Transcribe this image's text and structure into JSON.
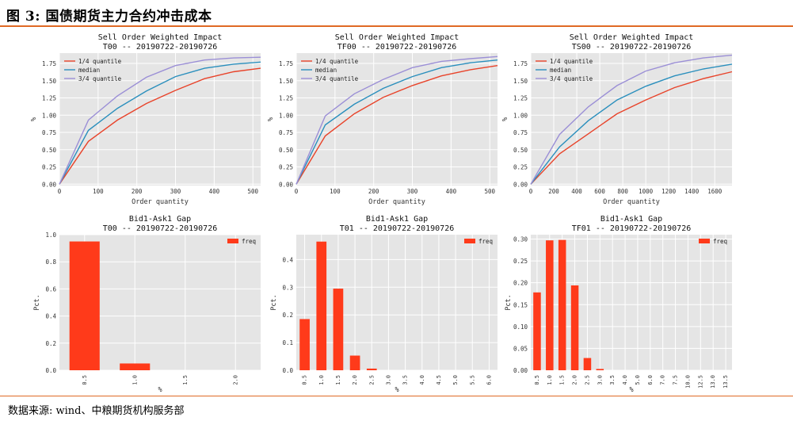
{
  "figure": {
    "title": "图 3: 国债期货主力合约冲击成本",
    "source": "数据来源: wind、中粮期货机构服务部"
  },
  "colors": {
    "q1": "#e8432a",
    "median": "#2a8fbd",
    "q3": "#9b8fd6",
    "bar": "#ff3a1a",
    "panel_bg": "#e5e5e5",
    "grid": "#ffffff",
    "accent_rule": "#e06a25"
  },
  "chart_data": [
    {
      "type": "line",
      "title": "Sell Order Weighted Impact",
      "subtitle": "T00 -- 20190722-20190726",
      "xlabel": "Order quantity",
      "ylabel": "%",
      "xlim": [
        0,
        520
      ],
      "ylim": [
        -0.02,
        1.9
      ],
      "xticks": [
        0,
        100,
        200,
        300,
        400,
        500
      ],
      "yticks": [
        0.0,
        0.25,
        0.5,
        0.75,
        1.0,
        1.25,
        1.5,
        1.75
      ],
      "ytick_labels": [
        "0.00",
        "0.25",
        "0.50",
        "0.75",
        "1.00",
        "1.25",
        "1.50",
        "1.75"
      ],
      "x": [
        0,
        75,
        150,
        225,
        300,
        375,
        450,
        525
      ],
      "series": [
        {
          "name": "1/4 quantile",
          "values": [
            0,
            0.62,
            0.93,
            1.17,
            1.36,
            1.53,
            1.63,
            1.68
          ]
        },
        {
          "name": "median",
          "values": [
            0,
            0.78,
            1.1,
            1.35,
            1.56,
            1.68,
            1.74,
            1.77
          ]
        },
        {
          "name": "3/4 quantile",
          "values": [
            0,
            0.93,
            1.28,
            1.55,
            1.72,
            1.8,
            1.83,
            1.84
          ]
        }
      ],
      "legend": "top-left",
      "grid": true
    },
    {
      "type": "line",
      "title": "Sell Order Weighted Impact",
      "subtitle": "TF00 -- 20190722-20190726",
      "xlabel": "Order quantity",
      "ylabel": "%",
      "xlim": [
        0,
        520
      ],
      "ylim": [
        -0.02,
        1.9
      ],
      "xticks": [
        0,
        100,
        200,
        300,
        400,
        500
      ],
      "yticks": [
        0.0,
        0.25,
        0.5,
        0.75,
        1.0,
        1.25,
        1.5,
        1.75
      ],
      "ytick_labels": [
        "0.00",
        "0.25",
        "0.50",
        "0.75",
        "1.00",
        "1.25",
        "1.50",
        "1.75"
      ],
      "x": [
        0,
        75,
        150,
        225,
        300,
        375,
        450,
        525
      ],
      "series": [
        {
          "name": "1/4 quantile",
          "values": [
            0,
            0.7,
            1.02,
            1.26,
            1.43,
            1.57,
            1.66,
            1.72
          ]
        },
        {
          "name": "median",
          "values": [
            0,
            0.86,
            1.16,
            1.39,
            1.56,
            1.69,
            1.76,
            1.8
          ]
        },
        {
          "name": "3/4 quantile",
          "values": [
            0,
            0.99,
            1.31,
            1.52,
            1.69,
            1.78,
            1.82,
            1.85
          ]
        }
      ],
      "legend": "top-left",
      "grid": true
    },
    {
      "type": "line",
      "title": "Sell Order Weighted Impact",
      "subtitle": "TS00 -- 20190722-20190726",
      "xlabel": "Order quantity",
      "ylabel": "%",
      "xlim": [
        0,
        1750
      ],
      "ylim": [
        -0.02,
        1.9
      ],
      "xticks": [
        0,
        200,
        400,
        600,
        800,
        1000,
        1200,
        1400,
        1600
      ],
      "yticks": [
        0.0,
        0.25,
        0.5,
        0.75,
        1.0,
        1.25,
        1.5,
        1.75
      ],
      "ytick_labels": [
        "0.00",
        "0.25",
        "0.50",
        "0.75",
        "1.00",
        "1.25",
        "1.50",
        "1.75"
      ],
      "x": [
        0,
        250,
        500,
        750,
        1000,
        1250,
        1500,
        1750
      ],
      "series": [
        {
          "name": "1/4 quantile",
          "values": [
            0,
            0.44,
            0.73,
            1.02,
            1.22,
            1.4,
            1.53,
            1.63
          ]
        },
        {
          "name": "median",
          "values": [
            0,
            0.54,
            0.92,
            1.22,
            1.42,
            1.57,
            1.67,
            1.74
          ]
        },
        {
          "name": "3/4 quantile",
          "values": [
            0,
            0.72,
            1.12,
            1.43,
            1.64,
            1.76,
            1.83,
            1.87
          ]
        }
      ],
      "legend": "top-left",
      "grid": true
    },
    {
      "type": "bar",
      "title": "Bid1-Ask1 Gap",
      "subtitle": "T00 -- 20190722-20190726",
      "xlabel": "%",
      "ylabel": "Pct.",
      "categories": [
        "0.5",
        "1.0",
        "1.5",
        "2.0"
      ],
      "values": [
        0.95,
        0.05,
        0,
        0
      ],
      "ylim": [
        0,
        1.0
      ],
      "yticks": [
        0.0,
        0.2,
        0.4,
        0.6,
        0.8,
        1.0
      ],
      "ytick_labels": [
        "0.0",
        "0.2",
        "0.4",
        "0.6",
        "0.8",
        "1.0"
      ],
      "series": [
        {
          "name": "freq"
        }
      ],
      "legend": "top-right",
      "grid": true
    },
    {
      "type": "bar",
      "title": "Bid1-Ask1 Gap",
      "subtitle": "T01 -- 20190722-20190726",
      "xlabel": "%",
      "ylabel": "Pct.",
      "categories": [
        "0.5",
        "1.0",
        "1.5",
        "2.0",
        "2.5",
        "3.0",
        "3.5",
        "4.0",
        "4.5",
        "5.0",
        "5.5",
        "6.0"
      ],
      "values": [
        0.185,
        0.465,
        0.295,
        0.053,
        0.006,
        0,
        0,
        0,
        0,
        0,
        0,
        0
      ],
      "ylim": [
        0,
        0.49
      ],
      "yticks": [
        0.0,
        0.1,
        0.2,
        0.3,
        0.4
      ],
      "ytick_labels": [
        "0.0",
        "0.1",
        "0.2",
        "0.3",
        "0.4"
      ],
      "series": [
        {
          "name": "freq"
        }
      ],
      "legend": "top-right",
      "grid": true
    },
    {
      "type": "bar",
      "title": "Bid1-Ask1 Gap",
      "subtitle": "TF01 -- 20190722-20190726",
      "xlabel": "%",
      "ylabel": "Pct.",
      "categories": [
        "0.5",
        "1.0",
        "1.5",
        "2.0",
        "2.5",
        "3.0",
        "3.5",
        "4.0",
        "5.0",
        "6.0",
        "7.0",
        "7.5",
        "10.0",
        "12.5",
        "13.0",
        "13.5"
      ],
      "values": [
        0.178,
        0.297,
        0.298,
        0.194,
        0.028,
        0.003,
        0,
        0,
        0,
        0,
        0,
        0,
        0,
        0,
        0,
        0
      ],
      "ylim": [
        0,
        0.31
      ],
      "yticks": [
        0.0,
        0.05,
        0.1,
        0.15,
        0.2,
        0.25,
        0.3
      ],
      "ytick_labels": [
        "0.00",
        "0.05",
        "0.10",
        "0.15",
        "0.20",
        "0.25",
        "0.30"
      ],
      "series": [
        {
          "name": "freq"
        }
      ],
      "legend": "top-right",
      "grid": true
    }
  ]
}
